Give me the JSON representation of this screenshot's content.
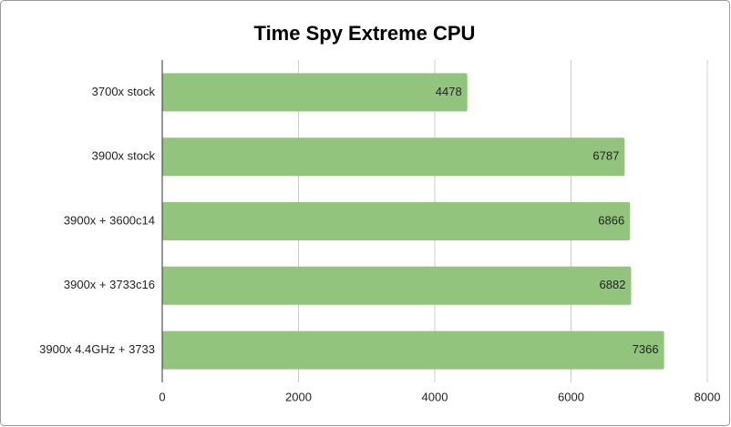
{
  "chart_data": {
    "type": "hbar",
    "title": "Time Spy Extreme CPU",
    "categories": [
      "3700x stock",
      "3900x stock",
      "3900x + 3600c14",
      "3900x + 3733c16",
      "3900x 4.4GHz + 3733"
    ],
    "values": [
      4478,
      6787,
      6866,
      6882,
      7366
    ],
    "color": "#93c47d",
    "xlim": [
      0,
      8000
    ],
    "xticks": [
      0,
      2000,
      4000,
      6000,
      8000
    ],
    "grid": true
  }
}
